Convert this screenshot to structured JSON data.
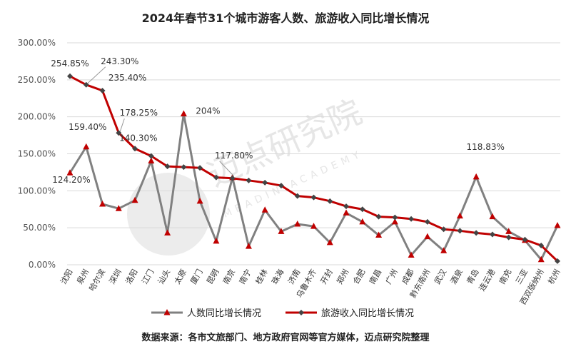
{
  "chart_data": {
    "type": "line",
    "title": "2024年春节31个城市游客人数、旅游收入同比增长情况",
    "categories": [
      "沈阳",
      "泉州",
      "哈尔滨",
      "深圳",
      "洛阳",
      "江门",
      "汕头",
      "太原",
      "厦门",
      "昆明",
      "南京",
      "南宁",
      "桂林",
      "珠海",
      "济南",
      "乌鲁木齐",
      "开封",
      "郑州",
      "合肥",
      "南昌",
      "广州",
      "成都",
      "黔东南州",
      "武汉",
      "酒泉",
      "青岛",
      "连云港",
      "南充",
      "三亚",
      "西双版纳州",
      "杭州"
    ],
    "series": [
      {
        "name": "人数同比增长情况",
        "color": "#808080",
        "marker": "triangle",
        "marker_color": "#c00000",
        "values": [
          124.2,
          159.4,
          82,
          76,
          87,
          140.3,
          43,
          204,
          86,
          32,
          117.8,
          25,
          74,
          45,
          55,
          52,
          30,
          70,
          58,
          40,
          58,
          13,
          38,
          19,
          66,
          118.83,
          65,
          45,
          33,
          7,
          53
        ]
      },
      {
        "name": "旅游收入同比增长情况",
        "color": "#c00000",
        "marker": "diamond",
        "marker_color": "#444444",
        "values": [
          254.85,
          243.3,
          235.4,
          178.25,
          157,
          147,
          133,
          132,
          131,
          118,
          117,
          114,
          111,
          107,
          93,
          91,
          86,
          79,
          75,
          65,
          64,
          62,
          58,
          48,
          46,
          43,
          41,
          37,
          34,
          26,
          5
        ]
      }
    ],
    "ylim": [
      0,
      300
    ],
    "ytick_labels": [
      "0.00%",
      "50.00%",
      "100.00%",
      "150.00%",
      "200.00%",
      "250.00%",
      "300.00%"
    ],
    "grid": true,
    "legend": "bottom",
    "labels": [
      {
        "text": "254.85%",
        "series": 1,
        "index": 0
      },
      {
        "text": "243.30%",
        "series": 1,
        "index": 1
      },
      {
        "text": "235.40%",
        "series": 1,
        "index": 2
      },
      {
        "text": "178.25%",
        "series": 1,
        "index": 3
      },
      {
        "text": "124.20%",
        "series": 0,
        "index": 0
      },
      {
        "text": "159.40%",
        "series": 0,
        "index": 1
      },
      {
        "text": "140.30%",
        "series": 0,
        "index": 5
      },
      {
        "text": "204%",
        "series": 0,
        "index": 7
      },
      {
        "text": "117.80%",
        "series": 0,
        "index": 10
      },
      {
        "text": "118.83%",
        "series": 0,
        "index": 25
      }
    ]
  },
  "watermark": {
    "text": "迈点研究院",
    "subtext": "MEADIN ACADEMY"
  },
  "source": "数据来源：各市文旅部门、地方政府官网等官方媒体，迈点研究院整理"
}
